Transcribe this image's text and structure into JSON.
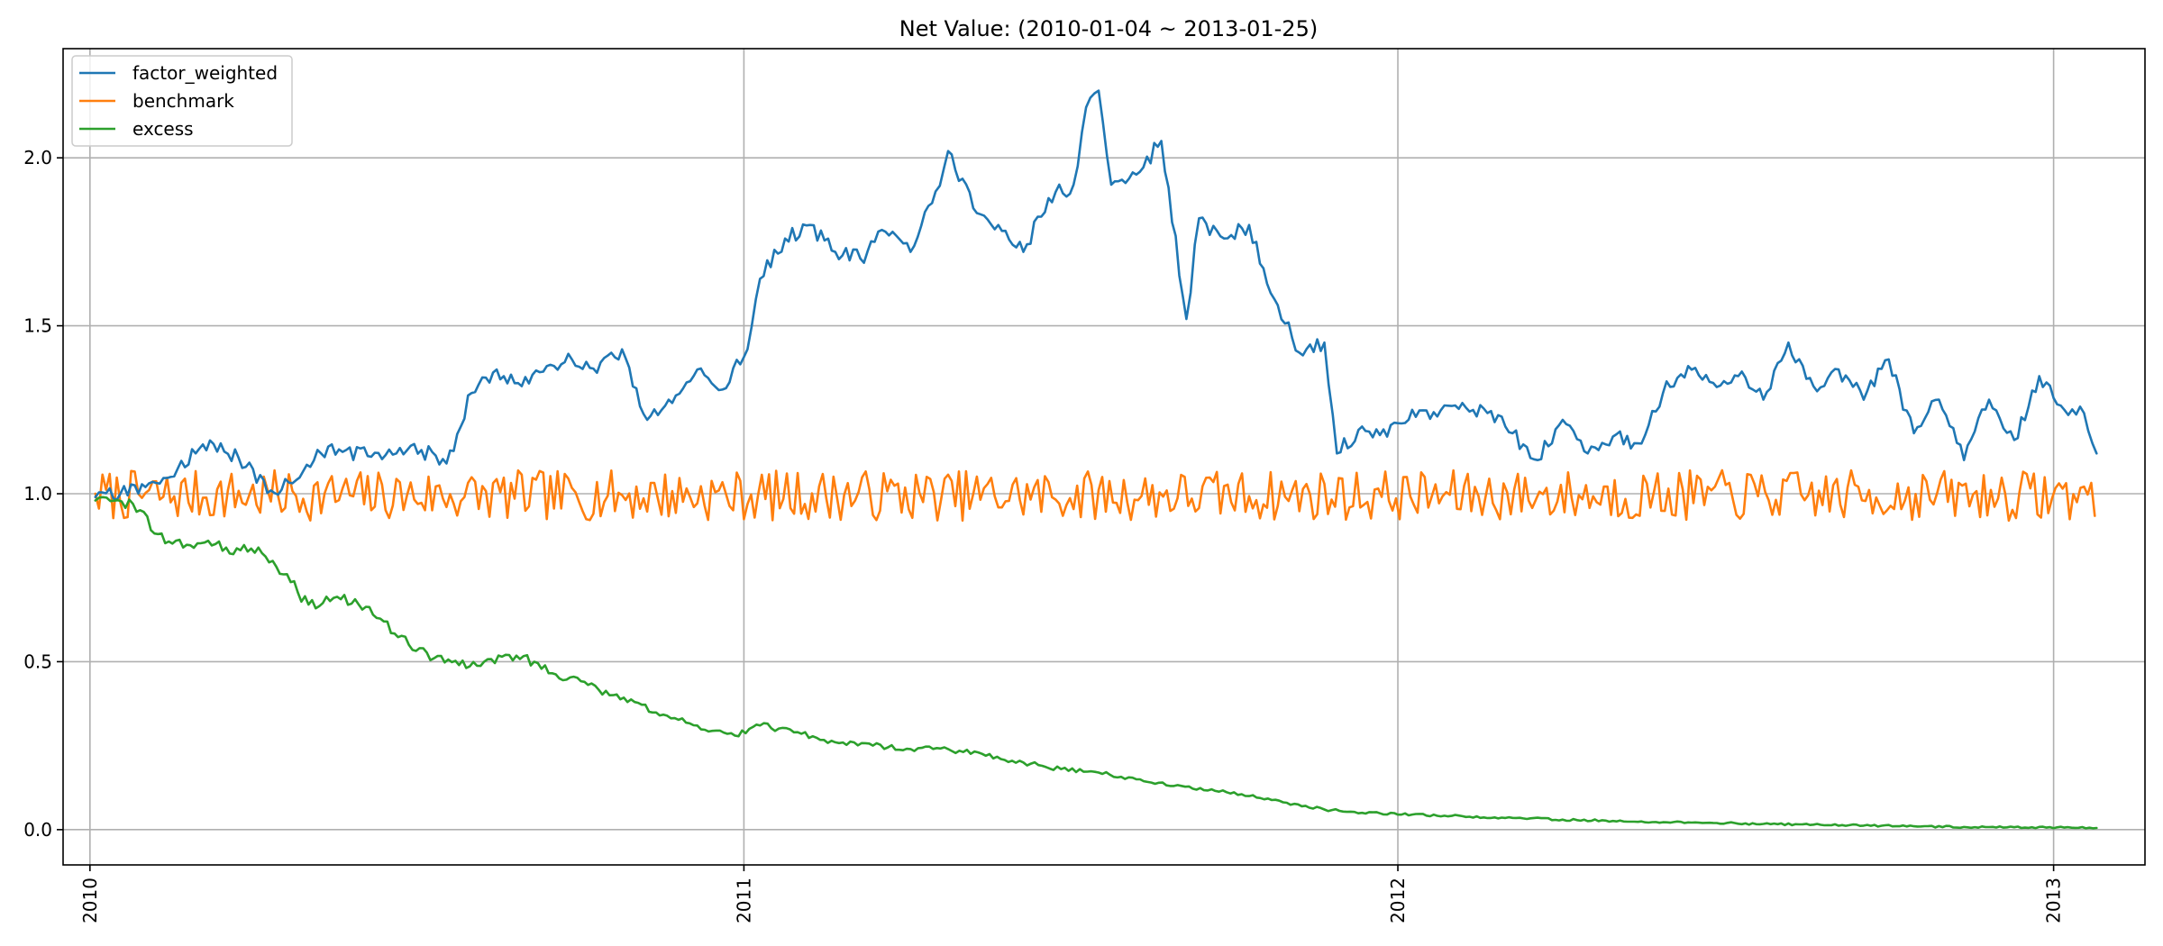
{
  "chart_data": {
    "type": "line",
    "title": "Net Value: (2010-01-04 ~ 2013-01-25)",
    "xlabel": "",
    "ylabel": "",
    "x_range": [
      "2009-12-17",
      "2013-02-21"
    ],
    "ylim": [
      -0.105,
      2.325
    ],
    "x_ticks": [
      {
        "date": "2010-01-01",
        "label": "2010"
      },
      {
        "date": "2011-01-01",
        "label": "2011"
      },
      {
        "date": "2012-01-01",
        "label": "2012"
      },
      {
        "date": "2013-01-01",
        "label": "2013"
      }
    ],
    "y_ticks": [
      {
        "value": 0.0,
        "label": "0.0"
      },
      {
        "value": 0.5,
        "label": "0.5"
      },
      {
        "value": 1.0,
        "label": "1.0"
      },
      {
        "value": 1.5,
        "label": "1.5"
      },
      {
        "value": 2.0,
        "label": "2.0"
      }
    ],
    "grid": true,
    "legend_position": "top-left",
    "series": [
      {
        "name": "factor_weighted",
        "color": "#1f77b4",
        "points": [
          [
            "2010-01-04",
            0.99
          ],
          [
            "2010-01-18",
            1.0
          ],
          [
            "2010-02-01",
            1.02
          ],
          [
            "2010-02-15",
            1.05
          ],
          [
            "2010-03-01",
            1.12
          ],
          [
            "2010-03-15",
            1.15
          ],
          [
            "2010-03-29",
            1.08
          ],
          [
            "2010-04-12",
            1.01
          ],
          [
            "2010-04-26",
            1.04
          ],
          [
            "2010-05-10",
            1.12
          ],
          [
            "2010-05-24",
            1.13
          ],
          [
            "2010-06-07",
            1.11
          ],
          [
            "2010-06-21",
            1.12
          ],
          [
            "2010-07-05",
            1.13
          ],
          [
            "2010-07-19",
            1.09
          ],
          [
            "2010-08-02",
            1.3
          ],
          [
            "2010-08-16",
            1.37
          ],
          [
            "2010-08-30",
            1.32
          ],
          [
            "2010-09-13",
            1.38
          ],
          [
            "2010-09-27",
            1.4
          ],
          [
            "2010-10-11",
            1.36
          ],
          [
            "2010-10-25",
            1.43
          ],
          [
            "2010-11-08",
            1.22
          ],
          [
            "2010-11-22",
            1.27
          ],
          [
            "2010-12-06",
            1.37
          ],
          [
            "2010-12-20",
            1.31
          ],
          [
            "2011-01-03",
            1.43
          ],
          [
            "2011-01-10",
            1.64
          ],
          [
            "2011-01-24",
            1.76
          ],
          [
            "2011-02-07",
            1.8
          ],
          [
            "2011-02-21",
            1.72
          ],
          [
            "2011-03-07",
            1.7
          ],
          [
            "2011-03-21",
            1.78
          ],
          [
            "2011-04-04",
            1.72
          ],
          [
            "2011-04-18",
            1.9
          ],
          [
            "2011-04-25",
            2.02
          ],
          [
            "2011-05-09",
            1.85
          ],
          [
            "2011-05-23",
            1.8
          ],
          [
            "2011-06-06",
            1.72
          ],
          [
            "2011-06-20",
            1.88
          ],
          [
            "2011-07-04",
            1.92
          ],
          [
            "2011-07-11",
            2.15
          ],
          [
            "2011-07-18",
            2.2
          ],
          [
            "2011-07-25",
            1.92
          ],
          [
            "2011-08-08",
            1.95
          ],
          [
            "2011-08-22",
            2.05
          ],
          [
            "2011-09-05",
            1.52
          ],
          [
            "2011-09-12",
            1.82
          ],
          [
            "2011-09-26",
            1.76
          ],
          [
            "2011-10-10",
            1.8
          ],
          [
            "2011-10-24",
            1.58
          ],
          [
            "2011-11-07",
            1.42
          ],
          [
            "2011-11-21",
            1.45
          ],
          [
            "2011-11-28",
            1.12
          ],
          [
            "2011-12-12",
            1.2
          ],
          [
            "2011-12-26",
            1.17
          ],
          [
            "2012-01-09",
            1.25
          ],
          [
            "2012-01-23",
            1.23
          ],
          [
            "2012-02-06",
            1.27
          ],
          [
            "2012-02-20",
            1.24
          ],
          [
            "2012-03-05",
            1.18
          ],
          [
            "2012-03-19",
            1.1
          ],
          [
            "2012-04-02",
            1.22
          ],
          [
            "2012-04-16",
            1.12
          ],
          [
            "2012-04-30",
            1.17
          ],
          [
            "2012-05-14",
            1.15
          ],
          [
            "2012-05-28",
            1.3
          ],
          [
            "2012-06-11",
            1.38
          ],
          [
            "2012-06-25",
            1.33
          ],
          [
            "2012-07-09",
            1.35
          ],
          [
            "2012-07-23",
            1.28
          ],
          [
            "2012-08-06",
            1.45
          ],
          [
            "2012-08-20",
            1.32
          ],
          [
            "2012-09-03",
            1.37
          ],
          [
            "2012-09-17",
            1.28
          ],
          [
            "2012-10-01",
            1.4
          ],
          [
            "2012-10-15",
            1.18
          ],
          [
            "2012-10-29",
            1.28
          ],
          [
            "2012-11-12",
            1.1
          ],
          [
            "2012-11-26",
            1.28
          ],
          [
            "2012-12-10",
            1.16
          ],
          [
            "2012-12-24",
            1.35
          ],
          [
            "2013-01-07",
            1.25
          ],
          [
            "2013-01-18",
            1.24
          ],
          [
            "2013-01-25",
            1.12
          ]
        ]
      },
      {
        "name": "benchmark",
        "color": "#ff7f0e",
        "generated": {
          "start": "2010-01-04",
          "end": "2013-01-25",
          "step_days": 2,
          "seed": 7,
          "center": 0.995,
          "spread": 0.075,
          "start_value": 1.0
        }
      },
      {
        "name": "excess",
        "color": "#2ca02c",
        "points": [
          [
            "2010-01-04",
            0.98
          ],
          [
            "2010-01-25",
            0.97
          ],
          [
            "2010-02-08",
            0.88
          ],
          [
            "2010-02-22",
            0.84
          ],
          [
            "2010-03-08",
            0.86
          ],
          [
            "2010-03-22",
            0.82
          ],
          [
            "2010-04-05",
            0.84
          ],
          [
            "2010-04-19",
            0.76
          ],
          [
            "2010-05-03",
            0.67
          ],
          [
            "2010-05-17",
            0.69
          ],
          [
            "2010-05-31",
            0.67
          ],
          [
            "2010-06-14",
            0.62
          ],
          [
            "2010-06-28",
            0.55
          ],
          [
            "2010-07-12",
            0.51
          ],
          [
            "2010-07-26",
            0.49
          ],
          [
            "2010-08-09",
            0.5
          ],
          [
            "2010-08-23",
            0.52
          ],
          [
            "2010-09-06",
            0.5
          ],
          [
            "2010-09-20",
            0.45
          ],
          [
            "2010-10-04",
            0.44
          ],
          [
            "2010-10-18",
            0.4
          ],
          [
            "2010-11-01",
            0.38
          ],
          [
            "2010-11-15",
            0.34
          ],
          [
            "2010-12-06",
            0.31
          ],
          [
            "2010-12-27",
            0.28
          ],
          [
            "2011-01-10",
            0.31
          ],
          [
            "2011-01-31",
            0.29
          ],
          [
            "2011-02-21",
            0.26
          ],
          [
            "2011-03-14",
            0.25
          ],
          [
            "2011-04-04",
            0.24
          ],
          [
            "2011-04-25",
            0.24
          ],
          [
            "2011-05-16",
            0.22
          ],
          [
            "2011-06-06",
            0.2
          ],
          [
            "2011-06-27",
            0.18
          ],
          [
            "2011-07-18",
            0.17
          ],
          [
            "2011-08-08",
            0.15
          ],
          [
            "2011-08-29",
            0.13
          ],
          [
            "2011-09-19",
            0.12
          ],
          [
            "2011-10-10",
            0.1
          ],
          [
            "2011-10-31",
            0.08
          ],
          [
            "2011-11-21",
            0.06
          ],
          [
            "2011-12-12",
            0.05
          ],
          [
            "2012-01-09",
            0.045
          ],
          [
            "2012-02-06",
            0.04
          ],
          [
            "2012-03-05",
            0.035
          ],
          [
            "2012-04-02",
            0.03
          ],
          [
            "2012-04-30",
            0.026
          ],
          [
            "2012-05-28",
            0.022
          ],
          [
            "2012-06-25",
            0.02
          ],
          [
            "2012-07-23",
            0.017
          ],
          [
            "2012-08-20",
            0.015
          ],
          [
            "2012-09-17",
            0.012
          ],
          [
            "2012-10-15",
            0.01
          ],
          [
            "2012-11-12",
            0.008
          ],
          [
            "2012-12-10",
            0.007
          ],
          [
            "2013-01-07",
            0.006
          ],
          [
            "2013-01-25",
            0.005
          ]
        ]
      }
    ]
  }
}
